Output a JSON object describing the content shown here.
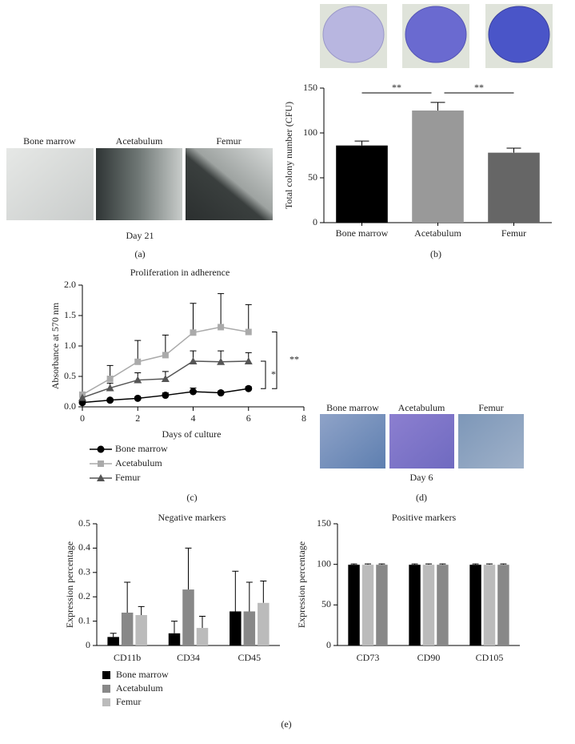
{
  "chart_data": [
    {
      "type": "bar",
      "ylabel": "Total colony number (CFU)",
      "categories": [
        "Bone marrow",
        "Acetabulum",
        "Femur"
      ],
      "values": [
        86,
        125,
        78
      ],
      "errors": [
        5,
        9,
        5
      ],
      "colors": [
        "#000000",
        "#999999",
        "#666666"
      ],
      "ylim": [
        0,
        150
      ],
      "yticks": [
        0,
        50,
        100,
        150
      ],
      "annotations": [
        "**",
        "**"
      ]
    },
    {
      "type": "line",
      "title": "Proliferation in adherence",
      "xlabel": "Days of culture",
      "ylabel": "Absorbance at 570 nm",
      "x": [
        0,
        1,
        2,
        3,
        4,
        5,
        6
      ],
      "series": [
        {
          "name": "Bone marrow",
          "color": "#000000",
          "marker": "circle",
          "values": [
            0.07,
            0.11,
            0.14,
            0.19,
            0.25,
            0.23,
            0.3
          ],
          "errors": [
            null,
            0.02,
            0.02,
            0.04,
            0.06,
            0.03,
            0.03
          ]
        },
        {
          "name": "Acetabulum",
          "color": "#aaaaaa",
          "marker": "square",
          "values": [
            0.2,
            0.46,
            0.74,
            0.85,
            1.22,
            1.31,
            1.23
          ],
          "errors": [
            null,
            0.22,
            0.35,
            0.33,
            0.48,
            0.55,
            0.45
          ]
        },
        {
          "name": "Femur",
          "color": "#555555",
          "marker": "triangle",
          "values": [
            0.15,
            0.31,
            0.44,
            0.46,
            0.75,
            0.74,
            0.75
          ],
          "errors": [
            null,
            0.08,
            0.12,
            0.12,
            0.17,
            0.18,
            0.14
          ]
        }
      ],
      "xlim": [
        0,
        8
      ],
      "xticks": [
        0,
        2,
        4,
        6,
        8
      ],
      "ylim": [
        0,
        2
      ],
      "yticks": [
        {
          "value": 0,
          "label": "0.0"
        },
        0.5,
        {
          "value": 1,
          "label": "1.0"
        },
        1.5,
        {
          "value": 2,
          "label": "2.0"
        }
      ],
      "annotations": [
        "**",
        "*"
      ]
    },
    {
      "type": "grouped_bar",
      "title": "Negative markers",
      "ylabel": "Expression percentage",
      "categories": [
        "CD11b",
        "CD34",
        "CD45"
      ],
      "series": [
        {
          "name": "Bone marrow",
          "color": "#000000",
          "values": [
            0.035,
            0.05,
            0.14
          ],
          "errors": [
            0.015,
            0.05,
            0.165
          ]
        },
        {
          "name": "Acetabulum",
          "color": "#888888",
          "values": [
            0.135,
            0.23,
            0.14
          ],
          "errors": [
            0.125,
            0.17,
            0.12
          ]
        },
        {
          "name": "Femur",
          "color": "#bbbbbb",
          "values": [
            0.125,
            0.072,
            0.175
          ],
          "errors": [
            0.035,
            0.048,
            0.09
          ]
        }
      ],
      "ylim": [
        0,
        0.5
      ],
      "yticks": [
        0,
        0.1,
        0.2,
        0.3,
        0.4,
        0.5
      ],
      "legend": true
    },
    {
      "type": "grouped_bar",
      "title": "Positive markers",
      "ylabel": "Expression percentage",
      "categories": [
        "CD73",
        "CD90",
        "CD105"
      ],
      "series": [
        {
          "name": "Bone marrow",
          "color": "#000000",
          "values": [
            99.5,
            99.5,
            99.5
          ],
          "errors": [
            1,
            1,
            1
          ]
        },
        {
          "name": "Acetabulum",
          "color": "#bbbbbb",
          "values": [
            99.5,
            99.5,
            99.5
          ],
          "errors": [
            1,
            1,
            1
          ]
        },
        {
          "name": "Femur",
          "color": "#888888",
          "values": [
            99.5,
            99.5,
            99.5
          ],
          "errors": [
            1,
            1,
            1
          ]
        }
      ],
      "ylim": [
        0,
        150
      ],
      "yticks": [
        0,
        50,
        100,
        150
      ],
      "legend": false
    }
  ],
  "figure": {
    "panel_labels": [
      "(a)",
      "(b)",
      "(c)",
      "(d)",
      "(e)"
    ],
    "panel_a": {
      "images": [
        "Bone marrow",
        "Acetabulum",
        "Femur"
      ],
      "caption": "Day 21"
    },
    "panel_d": {
      "images": [
        "Bone marrow",
        "Acetabulum",
        "Femur"
      ],
      "caption": "Day 6"
    }
  }
}
